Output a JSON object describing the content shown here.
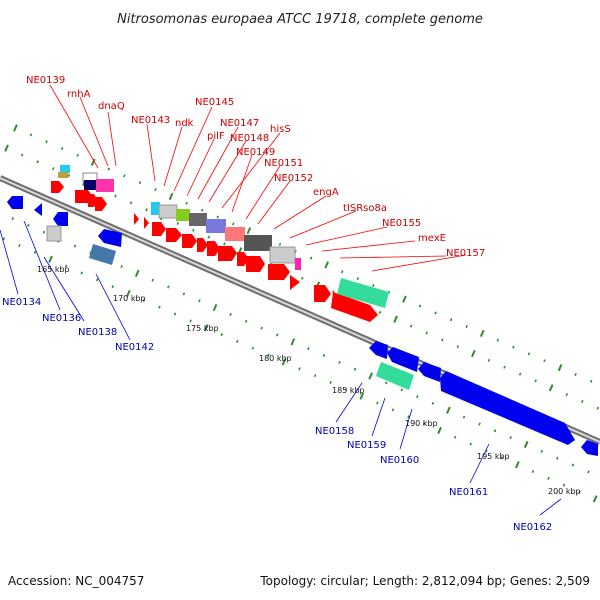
{
  "title": "Nitrosomonas europaea ATCC 19718, complete genome",
  "footer": {
    "accession": "Accession: NC_004757",
    "topology": "Topology: circular; Length: 2,812,094 bp; Genes: 2,509"
  },
  "colors": {
    "forward_label": "#d00000",
    "reverse_label": "#0000b0",
    "forward_gene": "#ff0000",
    "reverse_gene": "#0000ee",
    "rrna": "#33dd99",
    "backbone": "#888888",
    "dots": "#2e8b2e"
  },
  "scale_ticks": [
    "165 kbp",
    "170 kbp",
    "175 kbp",
    "180 kbp",
    "185 kbp",
    "190 kbp",
    "195 kbp",
    "200 kbp"
  ],
  "forward_labels": [
    "NE0139",
    "rnhA",
    "dnaQ",
    "NE0143",
    "ndk",
    "NE0145",
    "pilF",
    "NE0147",
    "NE0148",
    "hisS",
    "NE0149",
    "NE0151",
    "NE0152",
    "engA",
    "tISRso8a",
    "NE0155",
    "mexE",
    "NE0157"
  ],
  "reverse_labels": [
    "NE0134",
    "NE0136",
    "NE0138",
    "NE0142",
    "NE0158",
    "NE0159",
    "NE0160",
    "NE0161",
    "NE0162"
  ]
}
